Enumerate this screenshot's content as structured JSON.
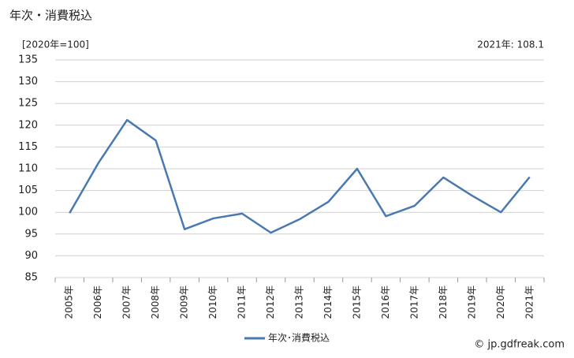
{
  "chart_data": {
    "type": "line",
    "title": "年次・消費税込",
    "y_unit_label": "[2020年=100]",
    "annotation": "2021年: 108.1",
    "source": "© jp.gdfreak.com",
    "categories": [
      "2005年",
      "2006年",
      "2007年",
      "2008年",
      "2009年",
      "2010年",
      "2011年",
      "2012年",
      "2013年",
      "2014年",
      "2015年",
      "2016年",
      "2017年",
      "2018年",
      "2019年",
      "2020年",
      "2021年"
    ],
    "series": [
      {
        "name": "年次･消費税込",
        "color": "#4a78b0",
        "values": [
          99.8,
          111.3,
          121.2,
          116.5,
          96.1,
          98.6,
          99.7,
          95.3,
          98.4,
          102.4,
          110.0,
          99.1,
          101.5,
          108.0,
          103.8,
          100.0,
          108.1
        ]
      }
    ],
    "ylim": [
      85,
      135
    ],
    "yticks": [
      85,
      90,
      95,
      100,
      105,
      110,
      115,
      120,
      125,
      130,
      135
    ],
    "grid": true
  }
}
